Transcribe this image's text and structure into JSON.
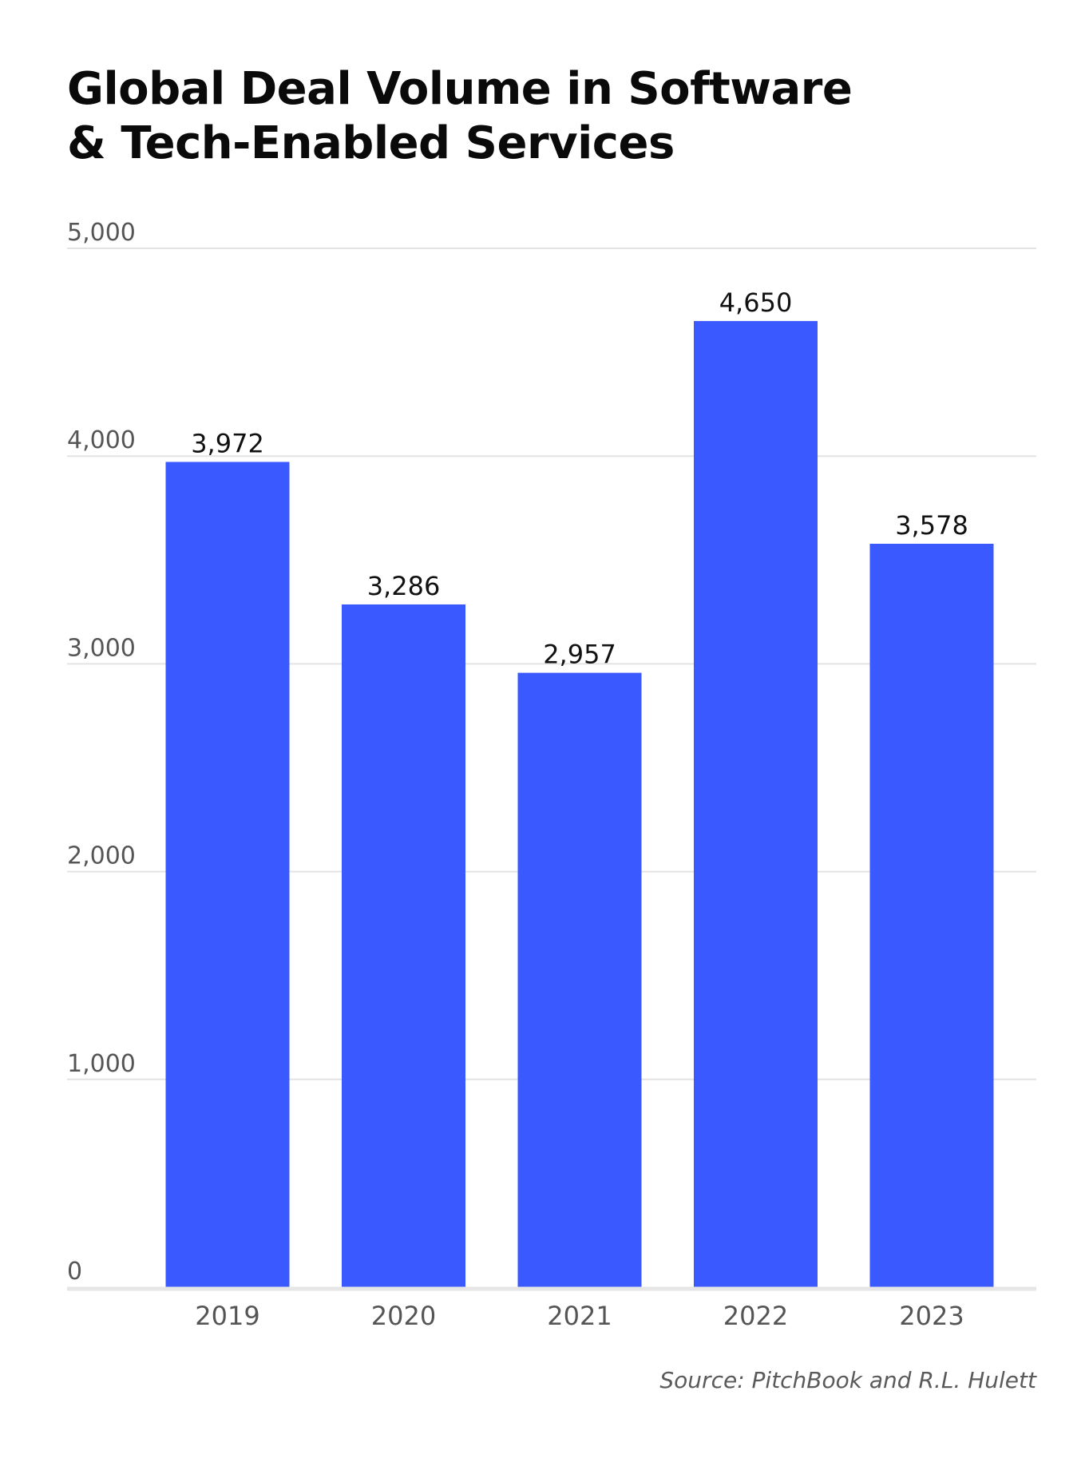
{
  "title_lines": [
    "Global Deal Volume in Software",
    "& Tech-Enabled Services"
  ],
  "source": "Source: PitchBook and R.L. Hulett",
  "colors": {
    "bar": "#3a5aff",
    "grid": "#e3e3e3",
    "baseline": "#e6e6e6",
    "tick_text": "#555555",
    "value_text": "#111111"
  },
  "chart_data": {
    "type": "bar",
    "title": "Global Deal Volume in Software & Tech-Enabled Services",
    "categories": [
      "2019",
      "2020",
      "2021",
      "2022",
      "2023"
    ],
    "values": [
      3972,
      3286,
      2957,
      4650,
      3578
    ],
    "value_labels": [
      "3,972",
      "3,286",
      "2,957",
      "4,650",
      "3,578"
    ],
    "ylim": [
      0,
      5000
    ],
    "yticks": [
      0,
      1000,
      2000,
      3000,
      4000,
      5000
    ],
    "ytick_labels": [
      "0",
      "1,000",
      "2,000",
      "3,000",
      "4,000",
      "5,000"
    ],
    "xlabel": "",
    "ylabel": "",
    "grid": true,
    "legend": "none"
  }
}
